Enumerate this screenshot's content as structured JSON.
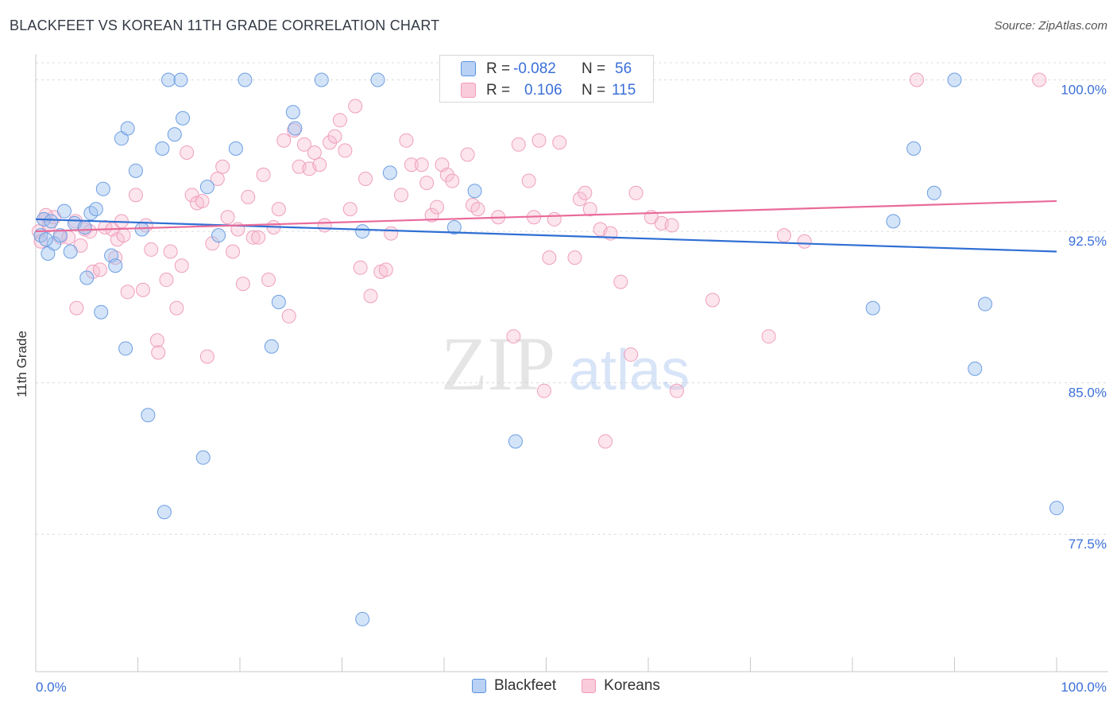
{
  "title": "BLACKFEET VS KOREAN 11TH GRADE CORRELATION CHART",
  "source": "Source: ZipAtlas.com",
  "watermark": {
    "zip": "ZIP",
    "atlas": "atlas"
  },
  "colors": {
    "blackfeet": "#5b93e0",
    "koreans": "#f19ab8",
    "blue_line": "#2f6fd4",
    "pink_line": "#e96b9a",
    "tick_text": "#3a6fd8"
  },
  "legend": {
    "blackfeet": {
      "r_label": "R =",
      "r": "-0.082",
      "n_label": "N =",
      "n": "56"
    },
    "koreans": {
      "r_label": "R =",
      "r": "0.106",
      "n_label": "N =",
      "n": "115"
    }
  },
  "chart_data": {
    "type": "scatter",
    "title": "BLACKFEET VS KOREAN 11TH GRADE CORRELATION CHART",
    "xlabel": "",
    "ylabel": "11th Grade",
    "xlim": [
      0,
      100
    ],
    "ylim": [
      70.7,
      101.2
    ],
    "x_tick_labels": [
      "0.0%",
      "100.0%"
    ],
    "y_ticks": [
      77.5,
      85.0,
      92.5,
      100.0
    ],
    "y_tick_labels": [
      "77.5%",
      "85.0%",
      "92.5%",
      "100.0%"
    ],
    "grid": true,
    "legend_position": "bottom",
    "series": [
      {
        "name": "Blackfeet",
        "trend": {
          "x": [
            0,
            100
          ],
          "y": [
            93.1,
            91.5
          ]
        },
        "points": [
          [
            0.5,
            92.3
          ],
          [
            0.8,
            93.1
          ],
          [
            1.2,
            91.4
          ],
          [
            1.8,
            91.9
          ],
          [
            2.4,
            92.3
          ],
          [
            2.8,
            93.5
          ],
          [
            3.4,
            91.5
          ],
          [
            3.8,
            92.9
          ],
          [
            4.8,
            92.7
          ],
          [
            5.0,
            90.2
          ],
          [
            5.4,
            93.4
          ],
          [
            5.9,
            93.6
          ],
          [
            6.4,
            88.5
          ],
          [
            6.6,
            94.6
          ],
          [
            7.4,
            91.3
          ],
          [
            7.8,
            90.8
          ],
          [
            8.4,
            97.1
          ],
          [
            8.8,
            86.7
          ],
          [
            9.0,
            97.6
          ],
          [
            9.8,
            95.5
          ],
          [
            10.4,
            92.6
          ],
          [
            11.0,
            83.4
          ],
          [
            12.4,
            96.6
          ],
          [
            12.6,
            78.6
          ],
          [
            13.0,
            100.0
          ],
          [
            13.6,
            97.3
          ],
          [
            14.2,
            100.0
          ],
          [
            14.4,
            98.1
          ],
          [
            16.4,
            81.3
          ],
          [
            16.8,
            94.7
          ],
          [
            17.9,
            92.3
          ],
          [
            19.6,
            96.6
          ],
          [
            20.5,
            100.0
          ],
          [
            23.8,
            89.0
          ],
          [
            23.1,
            86.8
          ],
          [
            25.2,
            98.4
          ],
          [
            25.4,
            97.6
          ],
          [
            28.0,
            100.0
          ],
          [
            32.0,
            92.5
          ],
          [
            32.0,
            73.3
          ],
          [
            33.5,
            100.0
          ],
          [
            34.7,
            95.4
          ],
          [
            41.0,
            92.7
          ],
          [
            43.0,
            94.5
          ],
          [
            47.0,
            82.1
          ],
          [
            52.0,
            100.0
          ],
          [
            1.0,
            92.1
          ],
          [
            1.5,
            93.0
          ],
          [
            84.0,
            93.0
          ],
          [
            82.0,
            88.7
          ],
          [
            86.0,
            96.6
          ],
          [
            88.0,
            94.4
          ],
          [
            90.0,
            100.0
          ],
          [
            92.0,
            85.7
          ],
          [
            93.0,
            88.9
          ],
          [
            100.0,
            78.8
          ]
        ]
      },
      {
        "name": "Koreans",
        "trend": {
          "x": [
            0,
            100
          ],
          "y": [
            92.5,
            94.0
          ]
        },
        "points": [
          [
            0.3,
            92.5
          ],
          [
            0.8,
            93.1
          ],
          [
            1.3,
            92.8
          ],
          [
            1.8,
            93.2
          ],
          [
            2.4,
            92.2
          ],
          [
            3.2,
            92.2
          ],
          [
            3.9,
            93.0
          ],
          [
            4.0,
            88.7
          ],
          [
            4.4,
            91.8
          ],
          [
            4.8,
            92.6
          ],
          [
            5.3,
            92.5
          ],
          [
            5.6,
            90.5
          ],
          [
            6.3,
            90.6
          ],
          [
            6.8,
            92.7
          ],
          [
            7.5,
            92.6
          ],
          [
            7.8,
            91.2
          ],
          [
            8.0,
            92.1
          ],
          [
            8.4,
            93.0
          ],
          [
            8.6,
            92.3
          ],
          [
            9.0,
            89.5
          ],
          [
            9.8,
            94.3
          ],
          [
            10.5,
            89.6
          ],
          [
            10.8,
            92.8
          ],
          [
            11.3,
            91.6
          ],
          [
            11.9,
            87.1
          ],
          [
            12.0,
            86.5
          ],
          [
            12.8,
            90.1
          ],
          [
            13.2,
            91.5
          ],
          [
            13.8,
            88.7
          ],
          [
            14.3,
            90.8
          ],
          [
            14.8,
            96.4
          ],
          [
            15.3,
            94.3
          ],
          [
            15.8,
            93.9
          ],
          [
            16.3,
            94.0
          ],
          [
            16.8,
            86.3
          ],
          [
            17.3,
            91.9
          ],
          [
            17.8,
            95.1
          ],
          [
            18.3,
            95.7
          ],
          [
            18.8,
            93.2
          ],
          [
            19.3,
            91.5
          ],
          [
            19.8,
            92.6
          ],
          [
            20.3,
            89.9
          ],
          [
            20.8,
            94.2
          ],
          [
            21.3,
            92.2
          ],
          [
            21.8,
            92.2
          ],
          [
            22.3,
            95.3
          ],
          [
            22.8,
            90.1
          ],
          [
            23.3,
            92.7
          ],
          [
            23.8,
            93.6
          ],
          [
            24.3,
            97.0
          ],
          [
            24.8,
            88.3
          ],
          [
            25.3,
            97.5
          ],
          [
            25.8,
            95.7
          ],
          [
            26.3,
            96.8
          ],
          [
            26.8,
            95.6
          ],
          [
            27.3,
            96.4
          ],
          [
            27.8,
            95.8
          ],
          [
            28.3,
            92.8
          ],
          [
            28.8,
            96.9
          ],
          [
            29.3,
            97.2
          ],
          [
            29.8,
            98.0
          ],
          [
            30.3,
            96.5
          ],
          [
            30.8,
            93.6
          ],
          [
            31.3,
            98.7
          ],
          [
            31.8,
            90.7
          ],
          [
            32.3,
            95.1
          ],
          [
            32.8,
            89.3
          ],
          [
            33.8,
            90.5
          ],
          [
            34.3,
            90.6
          ],
          [
            34.8,
            92.4
          ],
          [
            35.8,
            94.3
          ],
          [
            36.3,
            97.0
          ],
          [
            36.8,
            95.8
          ],
          [
            37.8,
            95.8
          ],
          [
            38.3,
            94.9
          ],
          [
            38.8,
            93.3
          ],
          [
            39.3,
            93.7
          ],
          [
            39.8,
            95.8
          ],
          [
            40.3,
            95.3
          ],
          [
            40.8,
            95.0
          ],
          [
            42.3,
            96.3
          ],
          [
            42.8,
            93.8
          ],
          [
            43.3,
            93.6
          ],
          [
            45.3,
            93.2
          ],
          [
            46.8,
            87.3
          ],
          [
            47.3,
            96.8
          ],
          [
            48.3,
            95.0
          ],
          [
            48.8,
            93.2
          ],
          [
            49.3,
            97.0
          ],
          [
            49.8,
            84.6
          ],
          [
            50.3,
            91.2
          ],
          [
            50.8,
            93.1
          ],
          [
            51.3,
            96.9
          ],
          [
            52.8,
            91.2
          ],
          [
            53.3,
            94.1
          ],
          [
            53.8,
            94.4
          ],
          [
            54.3,
            93.6
          ],
          [
            55.3,
            92.6
          ],
          [
            55.8,
            82.1
          ],
          [
            56.3,
            92.4
          ],
          [
            57.3,
            90.0
          ],
          [
            58.3,
            86.4
          ],
          [
            58.8,
            94.4
          ],
          [
            60.3,
            93.2
          ],
          [
            61.3,
            92.9
          ],
          [
            62.3,
            92.8
          ],
          [
            62.8,
            84.6
          ],
          [
            66.3,
            89.1
          ],
          [
            71.8,
            87.3
          ],
          [
            73.3,
            92.3
          ],
          [
            75.3,
            92.0
          ],
          [
            86.3,
            100.0
          ],
          [
            98.3,
            100.0
          ],
          [
            0.5,
            92.0
          ],
          [
            1.0,
            93.3
          ]
        ]
      }
    ]
  }
}
